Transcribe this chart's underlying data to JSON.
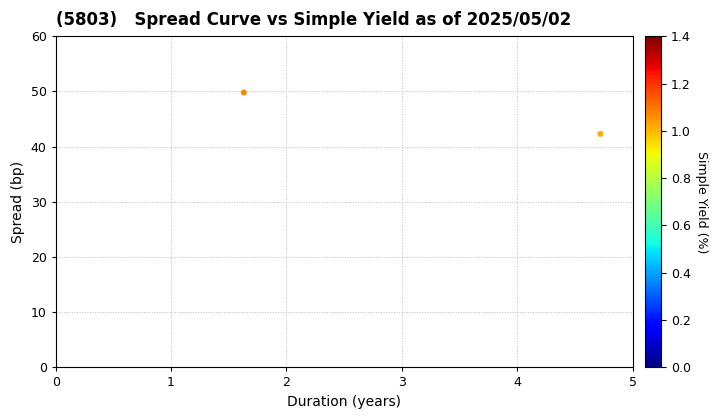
{
  "title": "(5803)   Spread Curve vs Simple Yield as of 2025/05/02",
  "xlabel": "Duration (years)",
  "ylabel": "Spread (bp)",
  "colorbar_label": "Simple Yield (%)",
  "xlim": [
    0,
    5
  ],
  "ylim": [
    0,
    60
  ],
  "xticks": [
    0,
    1,
    2,
    3,
    4,
    5
  ],
  "yticks": [
    0,
    10,
    20,
    30,
    40,
    50,
    60
  ],
  "colorbar_range": [
    0.0,
    1.4
  ],
  "colorbar_ticks": [
    0.0,
    0.2,
    0.4,
    0.6,
    0.8,
    1.0,
    1.2,
    1.4
  ],
  "points": [
    {
      "duration": 1.63,
      "spread": 49.8,
      "simple_yield": 1.08
    },
    {
      "duration": 4.72,
      "spread": 42.3,
      "simple_yield": 1.02
    }
  ],
  "marker_size": 18,
  "background_color": "#ffffff",
  "grid_color": "#bbbbbb",
  "title_fontsize": 12,
  "axis_label_fontsize": 10,
  "tick_fontsize": 9,
  "colorbar_label_fontsize": 9
}
